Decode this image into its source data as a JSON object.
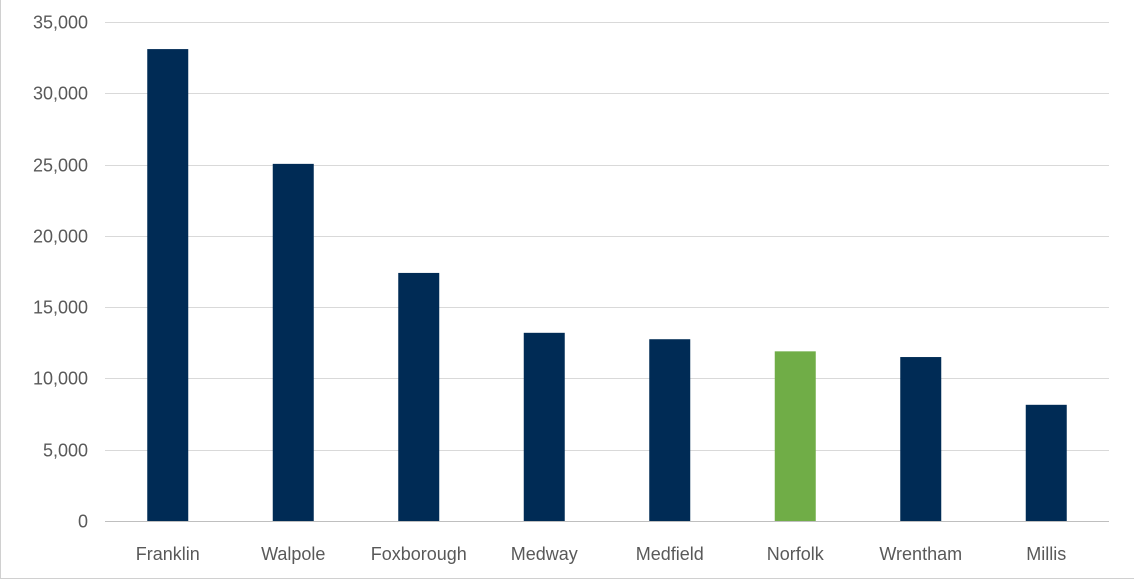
{
  "chart_data": {
    "type": "bar",
    "categories": [
      "Franklin",
      "Walpole",
      "Foxborough",
      "Medway",
      "Medfield",
      "Norfolk",
      "Wrentham",
      "Millis"
    ],
    "values": [
      33100,
      25050,
      17400,
      13200,
      12750,
      11900,
      11500,
      8150
    ],
    "highlight_index": 5,
    "colors": {
      "default": "#002b55",
      "highlight": "#70ad47"
    },
    "title": "",
    "xlabel": "",
    "ylabel": "",
    "ylim": [
      0,
      35000
    ],
    "yticks": [
      0,
      5000,
      10000,
      15000,
      20000,
      25000,
      30000,
      35000
    ],
    "ytick_labels": [
      "0",
      "5,000",
      "10,000",
      "15,000",
      "20,000",
      "25,000",
      "30,000",
      "35,000"
    ],
    "grid": true,
    "legend": "none"
  }
}
